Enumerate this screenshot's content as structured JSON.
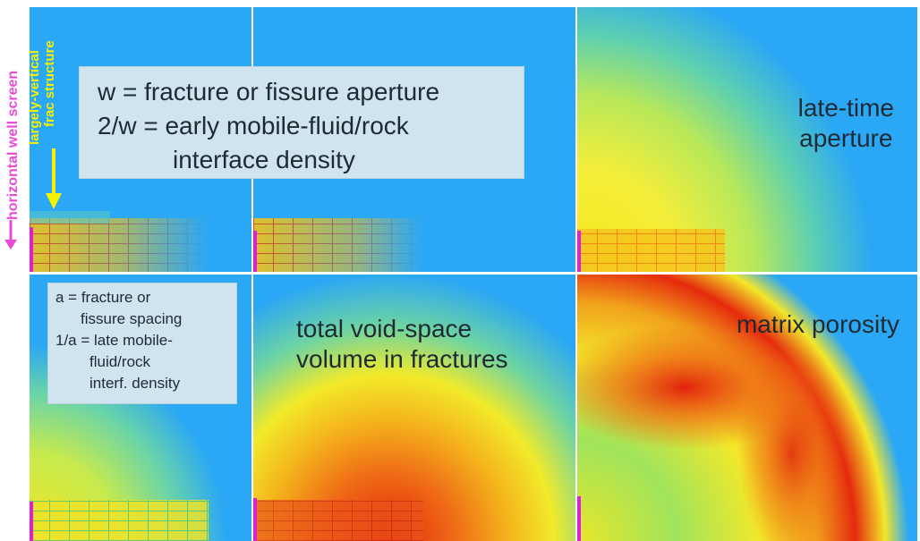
{
  "figure": {
    "panels": [
      {
        "id": "early-aperture",
        "title": ""
      },
      {
        "id": "early-aperture-2",
        "title": ""
      },
      {
        "id": "late-aperture",
        "title": "late-time\naperture"
      },
      {
        "id": "spacing",
        "title": ""
      },
      {
        "id": "void-volume",
        "title": "total void-space\nvolume in fractures"
      },
      {
        "id": "matrix-porosity",
        "title": "matrix porosity"
      }
    ],
    "annotations": {
      "well_screen": "horizontal well screen",
      "frac_structure_line1": "largely-vertical",
      "frac_structure_line2": "frac structure"
    },
    "legend_top": {
      "line1": "w  = fracture or fissure aperture",
      "line2": "2/w = early mobile-fluid/rock",
      "line3": "interface density"
    },
    "legend_bottom": {
      "line1": "a = fracture or",
      "line2": "fissure spacing",
      "line3": "1/a = late mobile-",
      "line4": "fluid/rock",
      "line5": "interf. density"
    },
    "colors": {
      "background": "#2aa7f5",
      "well_screen": "#e21be0",
      "frac_arrow": "#f7f000",
      "hot": "#e01a0a",
      "warm": "#f6e81c"
    }
  }
}
